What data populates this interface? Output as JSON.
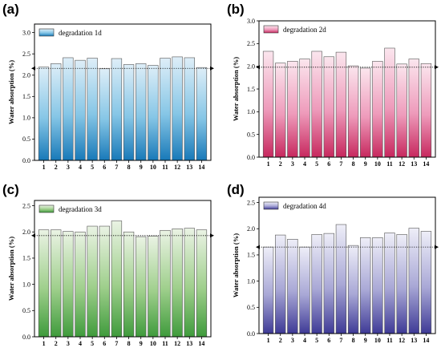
{
  "chart_data": [
    {
      "type": "bar",
      "panel_label": "(a)",
      "legend": [
        "degradation 1d"
      ],
      "legend_position": "top-left",
      "ylabel": "Water absorption (%)",
      "xlabel": "",
      "categories": [
        "1",
        "2",
        "3",
        "4",
        "5",
        "6",
        "7",
        "8",
        "9",
        "10",
        "11",
        "12",
        "13",
        "14"
      ],
      "values": [
        2.19,
        2.27,
        2.41,
        2.35,
        2.4,
        2.15,
        2.39,
        2.25,
        2.27,
        2.23,
        2.4,
        2.43,
        2.41,
        2.18
      ],
      "reference_line": 2.16,
      "ylim": [
        0,
        3.2
      ],
      "yticks": [
        "0.0",
        "0.5",
        "1.0",
        "1.5",
        "2.0",
        "2.5",
        "3.0"
      ],
      "ytick_values": [
        0,
        0.5,
        1.0,
        1.5,
        2.0,
        2.5,
        3.0
      ],
      "colors": {
        "top": "#deeef8",
        "mid": "#86c6e6",
        "bottom": "#1879b8",
        "border": "#555555"
      }
    },
    {
      "type": "bar",
      "panel_label": "(b)",
      "legend": [
        "degradation 2d"
      ],
      "legend_position": "top-left",
      "ylabel": "Water absorption (%)",
      "xlabel": "",
      "categories": [
        "1",
        "2",
        "3",
        "4",
        "5",
        "6",
        "7",
        "8",
        "9",
        "10",
        "11",
        "12",
        "13",
        "14"
      ],
      "values": [
        2.33,
        2.07,
        2.11,
        2.16,
        2.33,
        2.21,
        2.31,
        2.01,
        1.96,
        2.11,
        2.4,
        2.05,
        2.16,
        2.06
      ],
      "reference_line": 1.98,
      "ylim": [
        0,
        3.0
      ],
      "yticks": [
        "0.0",
        "0.5",
        "1.0",
        "1.5",
        "2.0",
        "2.5",
        "3.0"
      ],
      "ytick_values": [
        0,
        0.5,
        1.0,
        1.5,
        2.0,
        2.5,
        3.0
      ],
      "colors": {
        "top": "#fbe6ee",
        "mid": "#ee9bbb",
        "bottom": "#c7285e",
        "border": "#555555"
      }
    },
    {
      "type": "bar",
      "panel_label": "(c)",
      "legend": [
        "degradation 3d"
      ],
      "legend_position": "top-left",
      "ylabel": "Water absorption (%)",
      "xlabel": "",
      "categories": [
        "1",
        "2",
        "3",
        "4",
        "5",
        "6",
        "7",
        "8",
        "9",
        "10",
        "11",
        "12",
        "13",
        "14"
      ],
      "values": [
        2.04,
        2.04,
        2.01,
        2.0,
        2.11,
        2.11,
        2.21,
        2.0,
        1.91,
        1.92,
        2.03,
        2.06,
        2.07,
        2.04
      ],
      "reference_line": 1.93,
      "ylim": [
        0,
        2.6
      ],
      "yticks": [
        "0.0",
        "0.5",
        "1.0",
        "1.5",
        "2.0",
        "2.5"
      ],
      "ytick_values": [
        0,
        0.5,
        1.0,
        1.5,
        2.0,
        2.5
      ],
      "colors": {
        "top": "#eaf3e4",
        "mid": "#9fcf8c",
        "bottom": "#3f9b3c",
        "border": "#555555"
      }
    },
    {
      "type": "bar",
      "panel_label": "(d)",
      "legend": [
        "degradation 4d"
      ],
      "legend_position": "top-left",
      "ylabel": "Water absorption (%)",
      "xlabel": "",
      "categories": [
        "1",
        "2",
        "3",
        "4",
        "5",
        "6",
        "7",
        "8",
        "9",
        "10",
        "11",
        "12",
        "13",
        "14"
      ],
      "values": [
        1.65,
        1.88,
        1.8,
        1.65,
        1.89,
        1.91,
        2.08,
        1.68,
        1.83,
        1.83,
        1.92,
        1.89,
        2.01,
        1.95
      ],
      "reference_line": 1.65,
      "ylim": [
        0,
        2.6
      ],
      "yticks": [
        "0.0",
        "0.5",
        "1.0",
        "1.5",
        "2.0",
        "2.5"
      ],
      "ytick_values": [
        0,
        0.5,
        1.0,
        1.5,
        2.0,
        2.5
      ],
      "colors": {
        "top": "#eeeef8",
        "mid": "#a9a8d6",
        "bottom": "#3e3a96",
        "border": "#555555"
      }
    }
  ]
}
